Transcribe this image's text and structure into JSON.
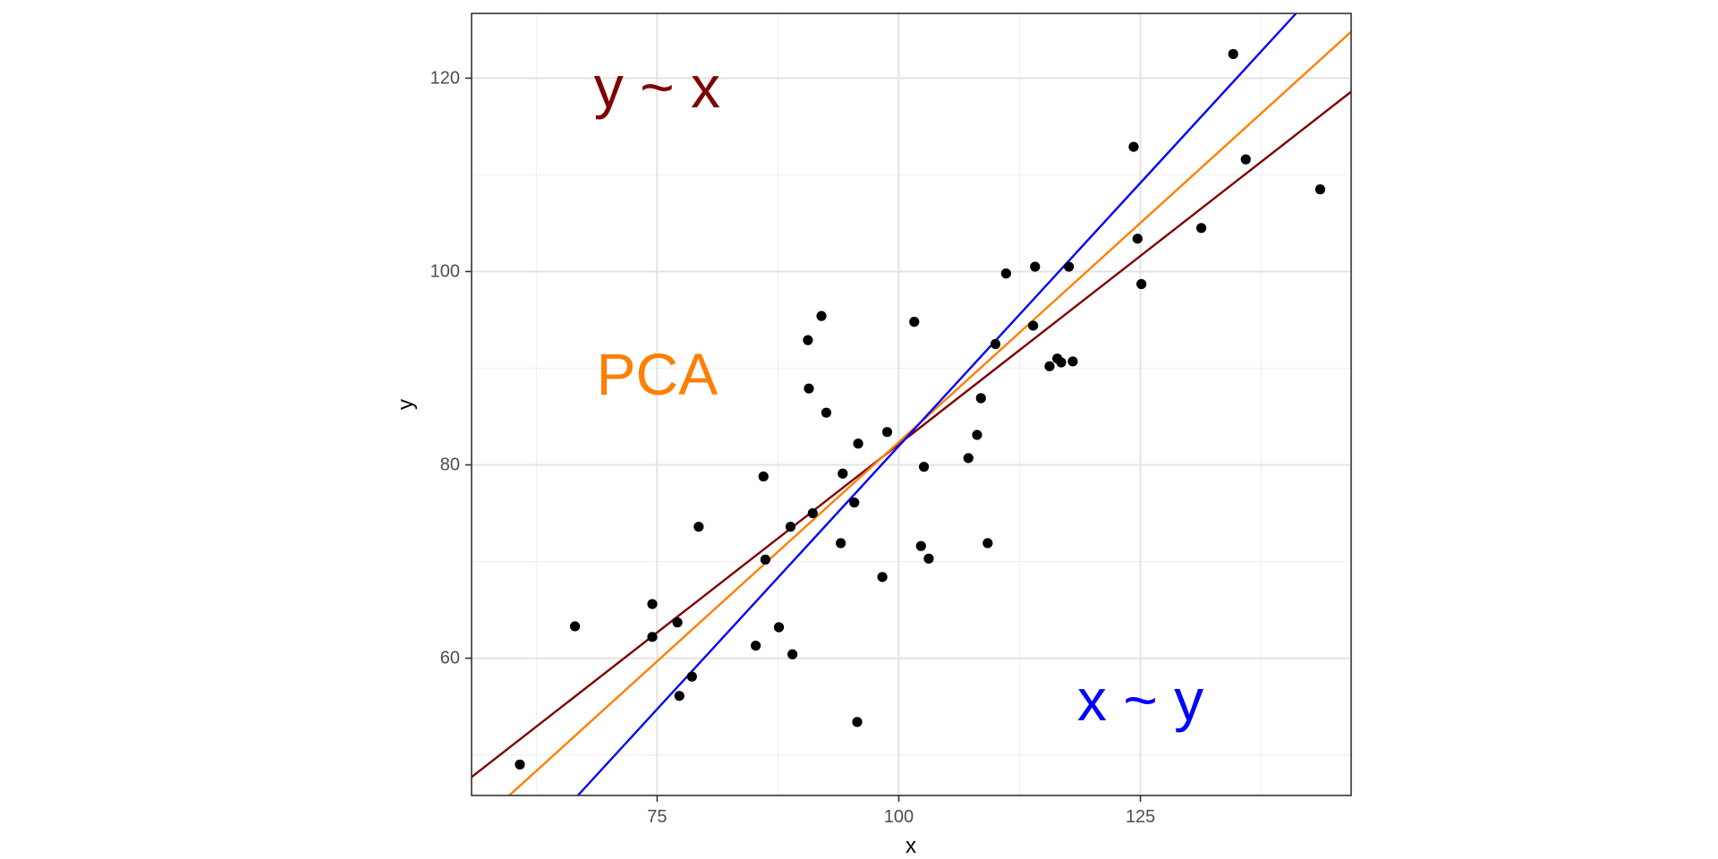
{
  "chart_data": {
    "type": "scatter",
    "xlabel": "x",
    "ylabel": "y",
    "xlim": [
      55.8,
      146.8
    ],
    "ylim": [
      45.8,
      126.7
    ],
    "x_ticks": [
      75,
      100,
      125
    ],
    "y_ticks": [
      60,
      80,
      100,
      120
    ],
    "grid": true,
    "points": [
      {
        "x": 60.8,
        "y": 49.0
      },
      {
        "x": 66.5,
        "y": 63.3
      },
      {
        "x": 74.5,
        "y": 65.6
      },
      {
        "x": 74.5,
        "y": 62.2
      },
      {
        "x": 77.1,
        "y": 63.7
      },
      {
        "x": 77.3,
        "y": 56.1
      },
      {
        "x": 78.6,
        "y": 58.1
      },
      {
        "x": 79.3,
        "y": 73.6
      },
      {
        "x": 85.2,
        "y": 61.3
      },
      {
        "x": 86.0,
        "y": 78.8
      },
      {
        "x": 86.2,
        "y": 70.2
      },
      {
        "x": 87.6,
        "y": 63.2
      },
      {
        "x": 88.8,
        "y": 73.6
      },
      {
        "x": 89.0,
        "y": 60.4
      },
      {
        "x": 90.6,
        "y": 92.9
      },
      {
        "x": 90.7,
        "y": 87.9
      },
      {
        "x": 91.1,
        "y": 75.0
      },
      {
        "x": 92.0,
        "y": 95.4
      },
      {
        "x": 92.5,
        "y": 85.4
      },
      {
        "x": 94.0,
        "y": 71.9
      },
      {
        "x": 94.2,
        "y": 79.1
      },
      {
        "x": 95.4,
        "y": 76.1
      },
      {
        "x": 95.7,
        "y": 53.4
      },
      {
        "x": 95.8,
        "y": 82.2
      },
      {
        "x": 98.3,
        "y": 68.4
      },
      {
        "x": 98.8,
        "y": 83.4
      },
      {
        "x": 101.6,
        "y": 94.8
      },
      {
        "x": 102.3,
        "y": 71.6
      },
      {
        "x": 102.6,
        "y": 79.8
      },
      {
        "x": 103.1,
        "y": 70.3
      },
      {
        "x": 107.2,
        "y": 80.7
      },
      {
        "x": 108.1,
        "y": 83.1
      },
      {
        "x": 108.5,
        "y": 86.9
      },
      {
        "x": 109.2,
        "y": 71.9
      },
      {
        "x": 110.0,
        "y": 92.5
      },
      {
        "x": 111.1,
        "y": 99.8
      },
      {
        "x": 113.9,
        "y": 94.4
      },
      {
        "x": 114.1,
        "y": 100.5
      },
      {
        "x": 115.6,
        "y": 90.2
      },
      {
        "x": 116.4,
        "y": 91.0
      },
      {
        "x": 116.8,
        "y": 90.6
      },
      {
        "x": 117.6,
        "y": 100.5
      },
      {
        "x": 118.0,
        "y": 90.7
      },
      {
        "x": 124.3,
        "y": 112.9
      },
      {
        "x": 124.7,
        "y": 103.4
      },
      {
        "x": 125.1,
        "y": 98.7
      },
      {
        "x": 131.3,
        "y": 104.5
      },
      {
        "x": 134.6,
        "y": 122.5
      },
      {
        "x": 135.9,
        "y": 111.6
      },
      {
        "x": 143.6,
        "y": 108.5
      }
    ],
    "lines": [
      {
        "name": "y ~ x",
        "color": "#7f0000",
        "x": [
          55.8,
          146.8
        ],
        "y": [
          47.7,
          118.6
        ]
      },
      {
        "name": "PCA",
        "color": "#ff7f00",
        "x": [
          59.7,
          146.8
        ],
        "y": [
          45.8,
          124.8
        ]
      },
      {
        "name": "x ~ y",
        "color": "#0000ff",
        "x": [
          66.8,
          141.1
        ],
        "y": [
          45.8,
          126.7
        ]
      }
    ],
    "annotations": [
      {
        "text": "y ~ x",
        "color": "#7f0000",
        "x": 75,
        "y": 119.1
      },
      {
        "text": "PCA",
        "color": "#ff7f00",
        "x": 75,
        "y": 89.4
      },
      {
        "text": "x ~ y",
        "color": "#0000ff",
        "x": 125,
        "y": 55.7
      }
    ]
  }
}
